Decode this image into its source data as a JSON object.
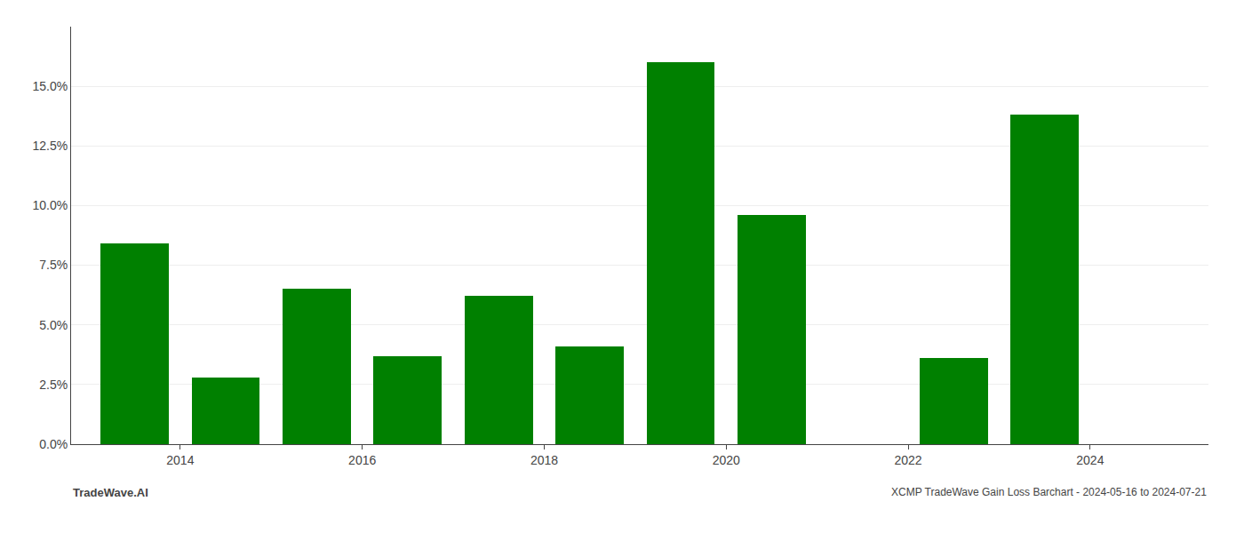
{
  "chart_data": {
    "type": "bar",
    "x": [
      2013,
      2014,
      2015,
      2016,
      2017,
      2018,
      2019,
      2020,
      2022,
      2023
    ],
    "values": [
      0.084,
      0.028,
      0.065,
      0.037,
      0.062,
      0.041,
      0.16,
      0.096,
      0.036,
      0.138
    ],
    "color": "#008000",
    "xlim": [
      2012.3,
      2024.8
    ],
    "xticks": [
      {
        "value": 2013.5,
        "label": "2014"
      },
      {
        "value": 2015.5,
        "label": "2016"
      },
      {
        "value": 2017.5,
        "label": "2018"
      },
      {
        "value": 2019.5,
        "label": "2020"
      },
      {
        "value": 2021.5,
        "label": "2022"
      },
      {
        "value": 2023.5,
        "label": "2024"
      }
    ],
    "ylim": [
      0,
      0.175
    ],
    "yticks": [
      {
        "value": 0.0,
        "label": "0.0%"
      },
      {
        "value": 0.025,
        "label": "2.5%"
      },
      {
        "value": 0.05,
        "label": "5.0%"
      },
      {
        "value": 0.075,
        "label": "7.5%"
      },
      {
        "value": 0.1,
        "label": "10.0%"
      },
      {
        "value": 0.125,
        "label": "12.5%"
      },
      {
        "value": 0.15,
        "label": "15.0%"
      }
    ],
    "grid": true,
    "annotations": [
      "TradeWave.AI",
      "XCMP TradeWave Gain Loss Barchart - 2024-05-16 to 2024-07-21"
    ]
  }
}
